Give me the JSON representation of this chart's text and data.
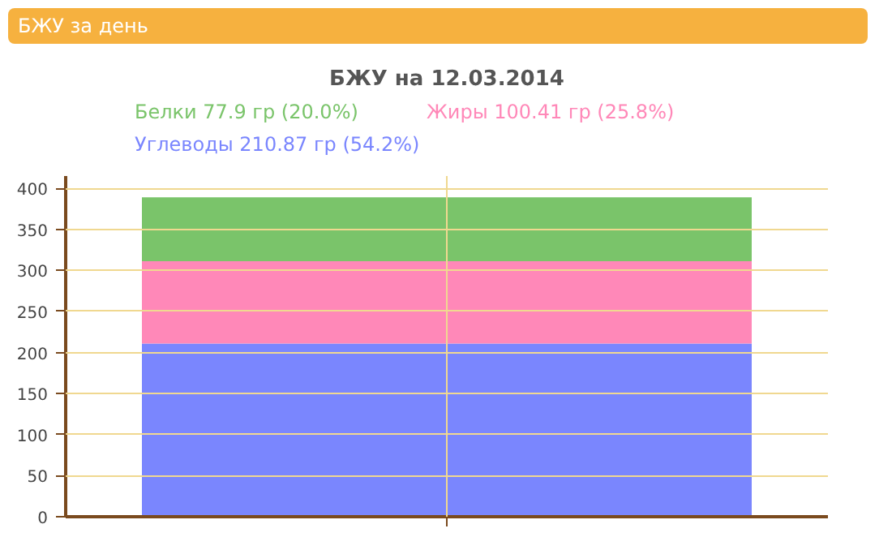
{
  "chart_data": {
    "type": "bar",
    "stacked": true,
    "title": "БЖУ на 12.03.2014",
    "annotations": [
      "БЖУ за день"
    ],
    "categories": [
      null
    ],
    "series": [
      {
        "name": "Углеводы 210.87 гр (54.2%)",
        "color": "#7a86fe",
        "values": [
          210.87
        ]
      },
      {
        "name": "Жиры 100.41 гр (25.8%)",
        "color": "#ff88b8",
        "values": [
          100.41
        ]
      },
      {
        "name": "Белки 77.9 гр (20.0%)",
        "color": "#7ac46a",
        "values": [
          77.9
        ]
      }
    ],
    "ylim": [
      0,
      415
    ],
    "yticks": [
      0,
      50,
      100,
      150,
      200,
      250,
      300,
      350,
      400
    ],
    "grid": true,
    "legend": "top"
  }
}
